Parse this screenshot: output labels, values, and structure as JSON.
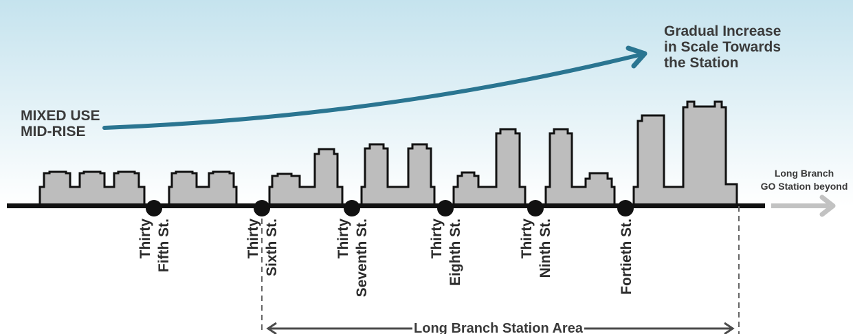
{
  "colors": {
    "sky_top": "#c5e3ee",
    "sky_bottom": "#ffffff",
    "building_fill": "#bdbdbd",
    "outline": "#111111",
    "arrow_teal": "#2a7591",
    "grey_arrow": "#c2c2c2",
    "text": "#3a3a3a"
  },
  "labels": {
    "left_title_line1": "MIXED USE",
    "left_title_line2": "MID-RISE",
    "right_title_line1": "Gradual Increase",
    "right_title_line2": "in Scale Towards",
    "right_title_line3": "the Station",
    "beyond_line1": "Long Branch",
    "beyond_line2": "GO Station beyond",
    "station_area": "Long Branch Station Area"
  },
  "streets": [
    {
      "line1": "Thirty",
      "line2": "Fifth St."
    },
    {
      "line1": "Thirty",
      "line2": "Sixth St."
    },
    {
      "line1": "Thirty",
      "line2": "Seventh St."
    },
    {
      "line1": "Thirty",
      "line2": "Eighth St."
    },
    {
      "line1": "Thirty",
      "line2": "Ninth St."
    },
    {
      "line1": "",
      "line2": "Fortieth St."
    }
  ],
  "icons": {
    "scale_arrow": "curved-arrow-icon",
    "beyond_arrow": "right-arrow-icon"
  }
}
